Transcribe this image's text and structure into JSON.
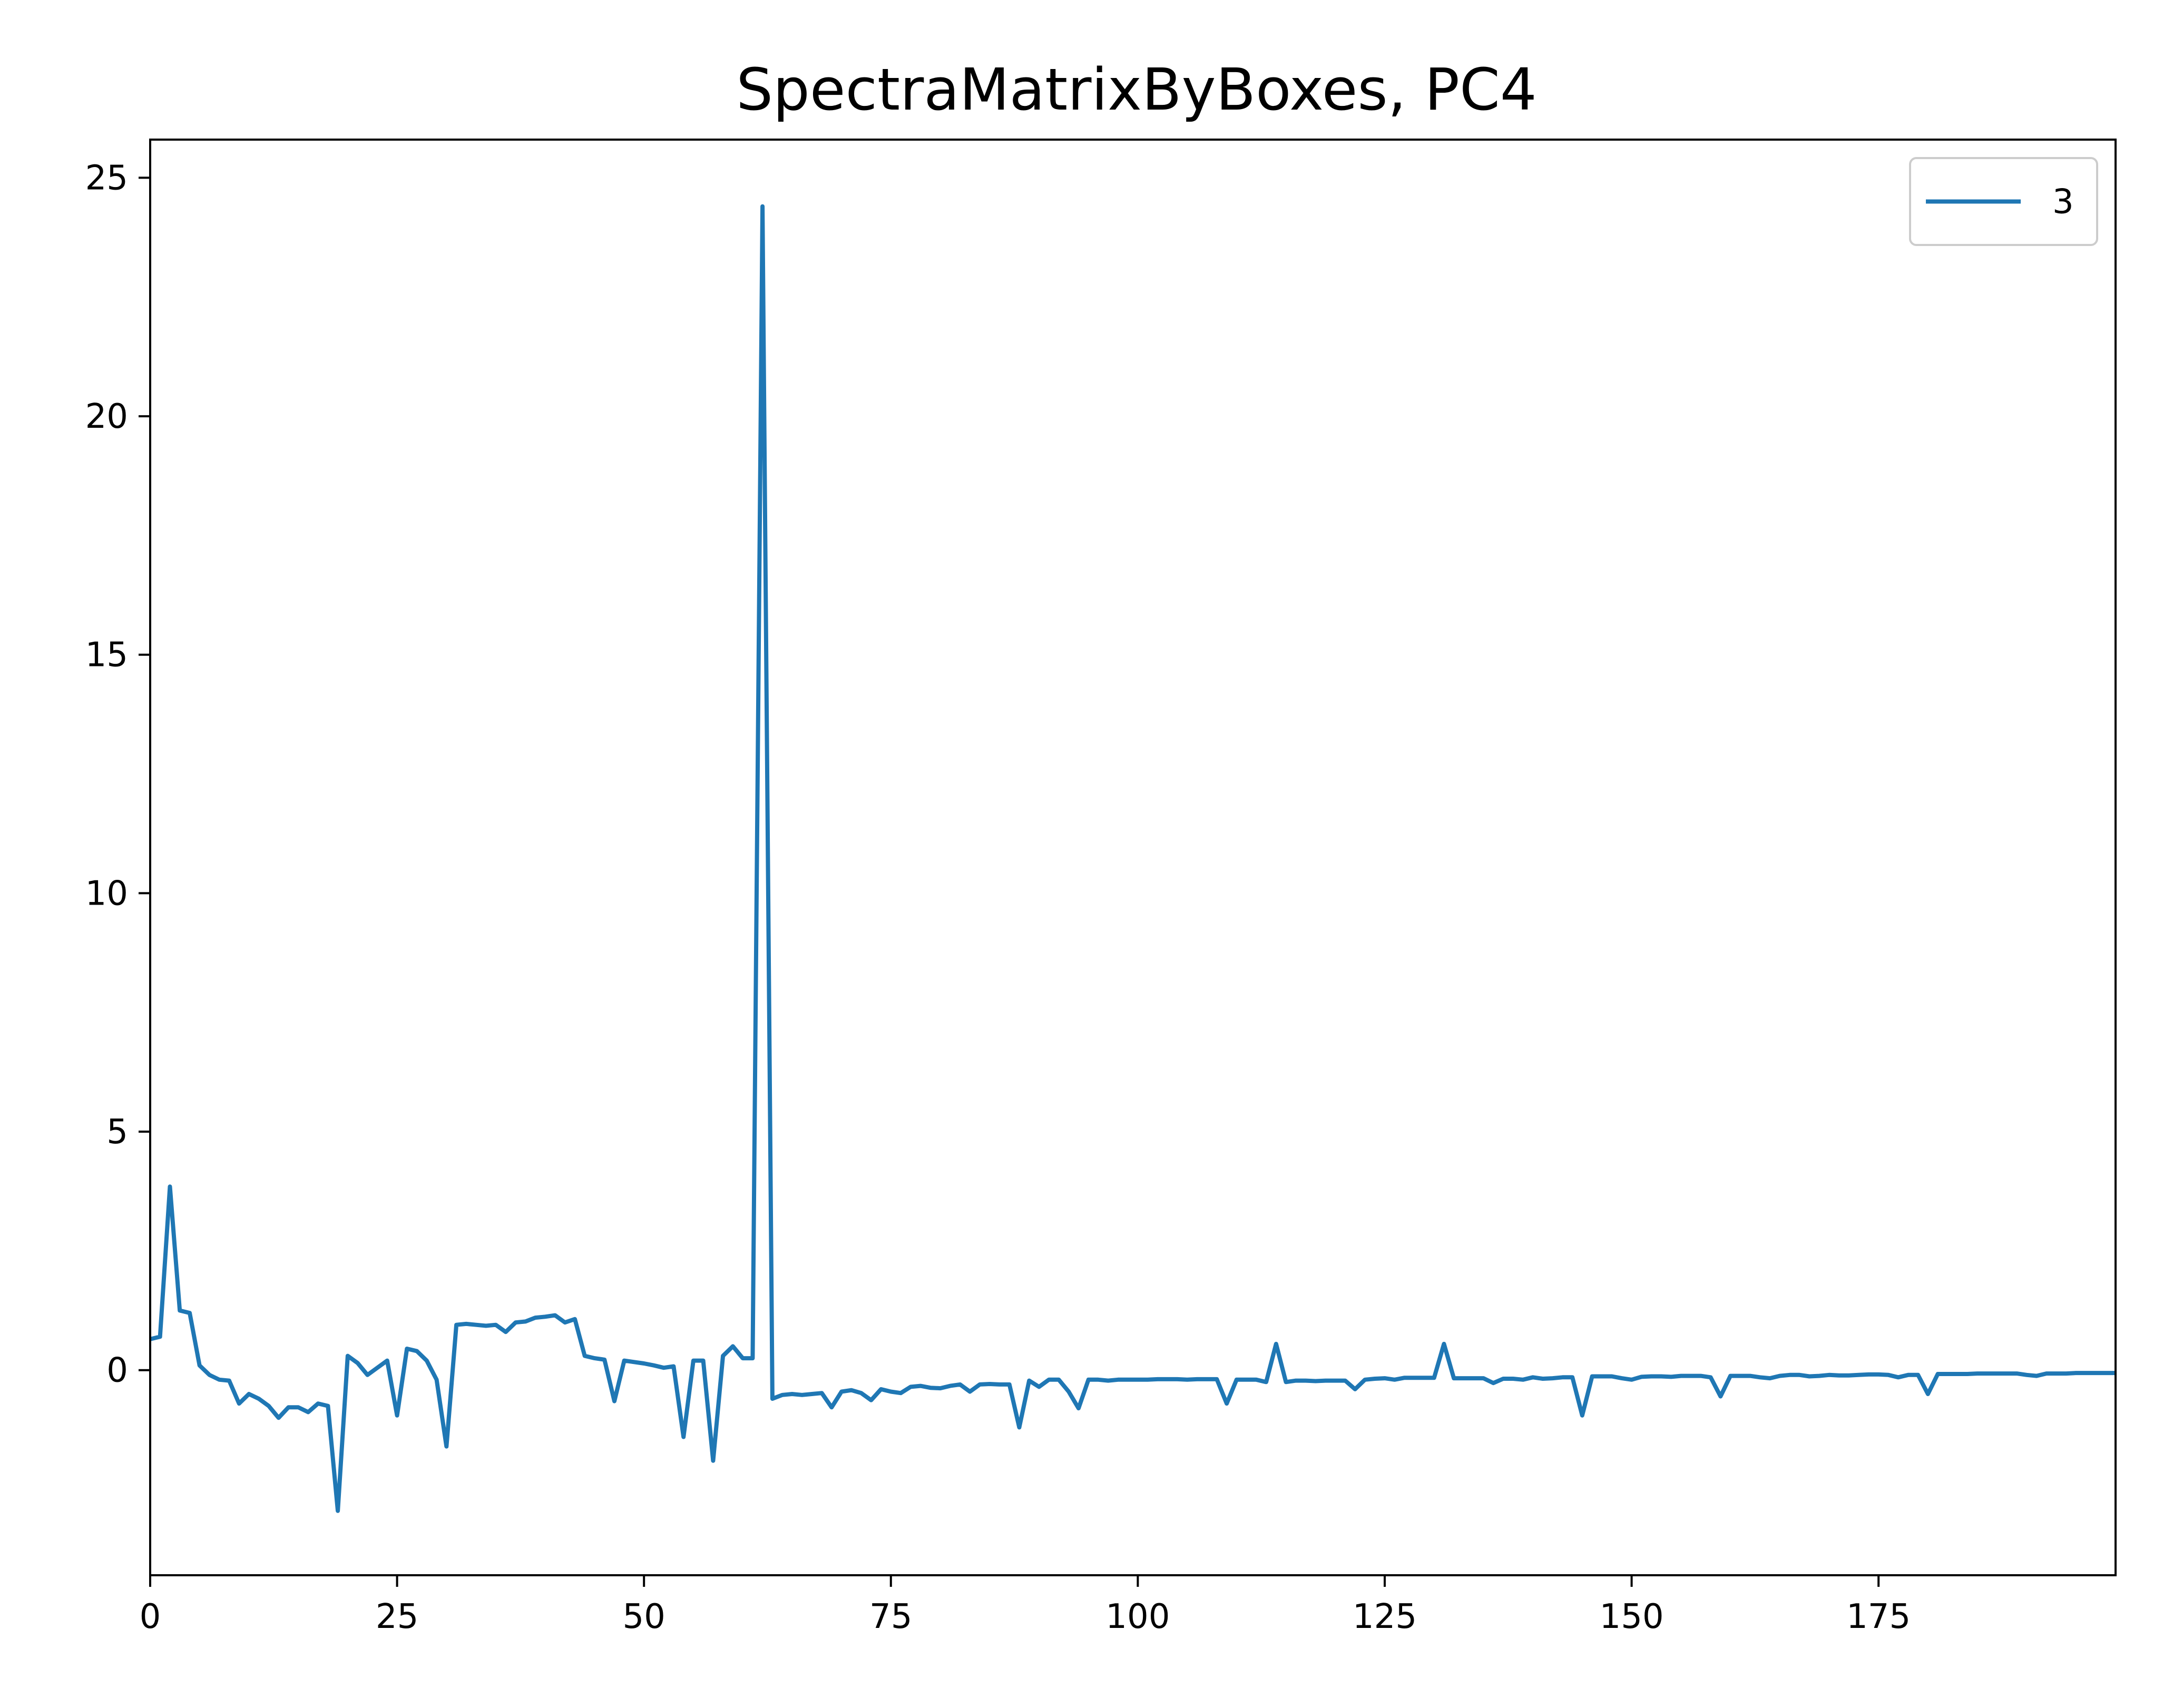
{
  "chart_data": {
    "type": "line",
    "title": "SpectraMatrixByBoxes, PC4",
    "xlabel": "",
    "ylabel": "",
    "xlim": [
      0,
      199
    ],
    "ylim": [
      -4.3,
      25.8
    ],
    "xticks": [
      0,
      25,
      50,
      75,
      100,
      125,
      150,
      175
    ],
    "yticks": [
      0,
      5,
      10,
      15,
      20,
      25
    ],
    "grid": false,
    "legend_position": "upper-right",
    "series": [
      {
        "name": "3",
        "color": "#1f77b4",
        "values": [
          0.65,
          0.7,
          3.85,
          1.25,
          1.2,
          0.1,
          -0.1,
          -0.2,
          -0.22,
          -0.7,
          -0.5,
          -0.6,
          -0.75,
          -1.0,
          -0.78,
          -0.78,
          -0.88,
          -0.7,
          -0.75,
          -2.95,
          0.3,
          0.15,
          -0.1,
          0.05,
          0.2,
          -0.95,
          0.45,
          0.4,
          0.2,
          -0.2,
          -1.6,
          0.95,
          0.97,
          0.95,
          0.93,
          0.95,
          0.8,
          1.0,
          1.02,
          1.1,
          1.12,
          1.15,
          1.0,
          1.07,
          0.3,
          0.25,
          0.22,
          -0.65,
          0.2,
          0.17,
          0.14,
          0.1,
          0.05,
          0.08,
          -1.4,
          0.2,
          0.2,
          -1.9,
          0.3,
          0.5,
          0.25,
          0.25,
          24.4,
          -0.6,
          -0.52,
          -0.5,
          -0.52,
          -0.5,
          -0.48,
          -0.78,
          -0.45,
          -0.42,
          -0.48,
          -0.63,
          -0.4,
          -0.45,
          -0.48,
          -0.35,
          -0.33,
          -0.37,
          -0.38,
          -0.33,
          -0.3,
          -0.45,
          -0.3,
          -0.29,
          -0.3,
          -0.3,
          -1.2,
          -0.22,
          -0.35,
          -0.2,
          -0.2,
          -0.45,
          -0.8,
          -0.2,
          -0.2,
          -0.22,
          -0.2,
          -0.2,
          -0.2,
          -0.2,
          -0.19,
          -0.19,
          -0.19,
          -0.2,
          -0.19,
          -0.19,
          -0.19,
          -0.7,
          -0.2,
          -0.2,
          -0.2,
          -0.25,
          0.55,
          -0.25,
          -0.22,
          -0.22,
          -0.23,
          -0.22,
          -0.22,
          -0.22,
          -0.4,
          -0.2,
          -0.18,
          -0.17,
          -0.2,
          -0.16,
          -0.16,
          -0.16,
          -0.16,
          0.55,
          -0.17,
          -0.17,
          -0.17,
          -0.17,
          -0.27,
          -0.18,
          -0.18,
          -0.2,
          -0.15,
          -0.18,
          -0.17,
          -0.15,
          -0.15,
          -0.95,
          -0.13,
          -0.13,
          -0.13,
          -0.17,
          -0.2,
          -0.14,
          -0.13,
          -0.13,
          -0.14,
          -0.12,
          -0.12,
          -0.12,
          -0.15,
          -0.55,
          -0.12,
          -0.12,
          -0.12,
          -0.15,
          -0.17,
          -0.12,
          -0.1,
          -0.1,
          -0.13,
          -0.12,
          -0.1,
          -0.11,
          -0.11,
          -0.1,
          -0.09,
          -0.09,
          -0.1,
          -0.15,
          -0.1,
          -0.1,
          -0.5,
          -0.08,
          -0.08,
          -0.08,
          -0.08,
          -0.07,
          -0.07,
          -0.07,
          -0.07,
          -0.07,
          -0.1,
          -0.12,
          -0.07,
          -0.07,
          -0.07,
          -0.06,
          -0.06,
          -0.06,
          -0.06,
          -0.06
        ]
      }
    ]
  }
}
